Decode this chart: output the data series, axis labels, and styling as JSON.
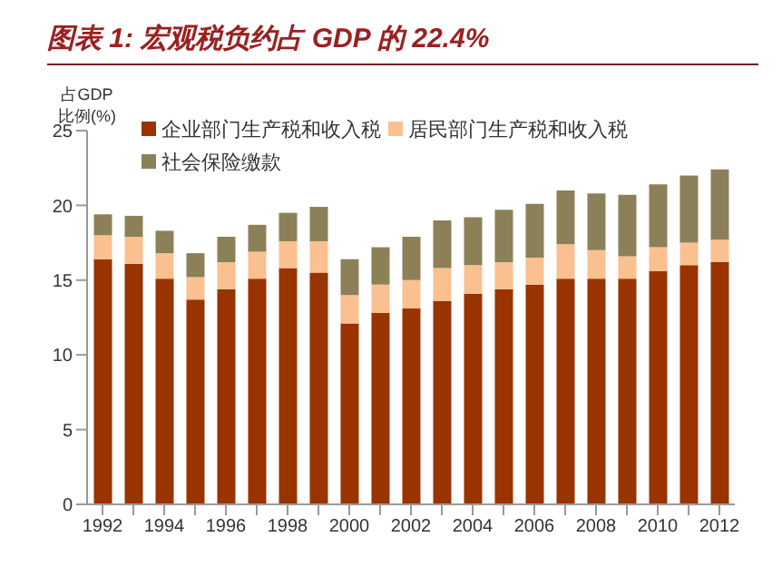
{
  "chart_data": {
    "type": "bar",
    "title": "图表 1: 宏观税负约占 GDP 的 22.4%",
    "ylabel": "占GDP\n比例(%)",
    "stacked": true,
    "categories": [
      "1992",
      null,
      "1994",
      null,
      "1996",
      null,
      "1998",
      null,
      "2000",
      null,
      "2002",
      null,
      "2004",
      null,
      "2006",
      null,
      "2008",
      null,
      "2010",
      null,
      "2012"
    ],
    "series": [
      {
        "name": "企业部门生产税和收入税",
        "color": "#993300",
        "values": [
          16.4,
          16.1,
          15.1,
          13.7,
          14.4,
          15.1,
          15.8,
          15.5,
          12.1,
          12.8,
          13.1,
          13.6,
          14.1,
          14.4,
          14.7,
          15.1,
          15.1,
          15.1,
          15.6,
          16.0,
          16.2
        ]
      },
      {
        "name": "居民部门生产税和收入税",
        "color": "#fac090",
        "values": [
          1.6,
          1.8,
          1.7,
          1.5,
          1.8,
          1.8,
          1.8,
          2.1,
          1.9,
          1.9,
          1.9,
          2.2,
          1.9,
          1.8,
          1.8,
          2.3,
          1.9,
          1.5,
          1.6,
          1.5,
          1.5
        ]
      },
      {
        "name": "社会保险缴款",
        "color": "#8b8058",
        "values": [
          1.4,
          1.4,
          1.5,
          1.6,
          1.7,
          1.8,
          1.9,
          2.3,
          2.4,
          2.5,
          2.9,
          3.2,
          3.2,
          3.5,
          3.6,
          3.6,
          3.8,
          4.1,
          4.2,
          4.5,
          4.7
        ]
      }
    ],
    "ylim": [
      0,
      25
    ],
    "yticks": [
      0,
      5,
      10,
      15,
      20,
      25
    ],
    "legend": "top left"
  }
}
